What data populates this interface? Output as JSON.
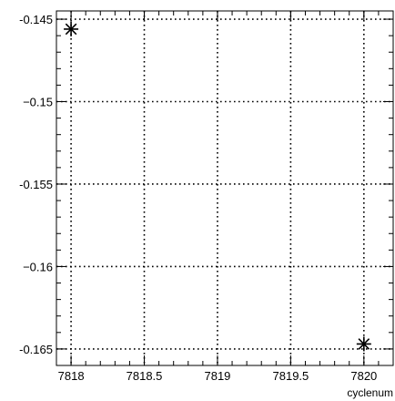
{
  "chart_data": {
    "type": "scatter",
    "title": "",
    "xlabel": "cyclenum",
    "ylabel": "",
    "xlim": [
      7817.9,
      7820.2
    ],
    "ylim": [
      -0.166,
      -0.1445
    ],
    "grid": true,
    "marker": "star",
    "x_ticks": [
      {
        "value": 7818,
        "label": "7818"
      },
      {
        "value": 7818.5,
        "label": "7818.5"
      },
      {
        "value": 7819,
        "label": "7819"
      },
      {
        "value": 7819.5,
        "label": "7819.5"
      },
      {
        "value": 7820,
        "label": "7820"
      }
    ],
    "y_ticks": [
      {
        "value": -0.145,
        "label": "-0.145"
      },
      {
        "value": -0.15,
        "label": "−0.15"
      },
      {
        "value": -0.155,
        "label": "-0.155"
      },
      {
        "value": -0.16,
        "label": "−0.16"
      },
      {
        "value": -0.165,
        "label": "-0.165"
      }
    ],
    "series": [
      {
        "x": [
          7818,
          7820
        ],
        "y": [
          -0.1456,
          -0.1647
        ]
      }
    ],
    "colors": {
      "frame": "#000000",
      "grid": "#000000",
      "marker": "#000000",
      "background": "#ffffff"
    }
  }
}
